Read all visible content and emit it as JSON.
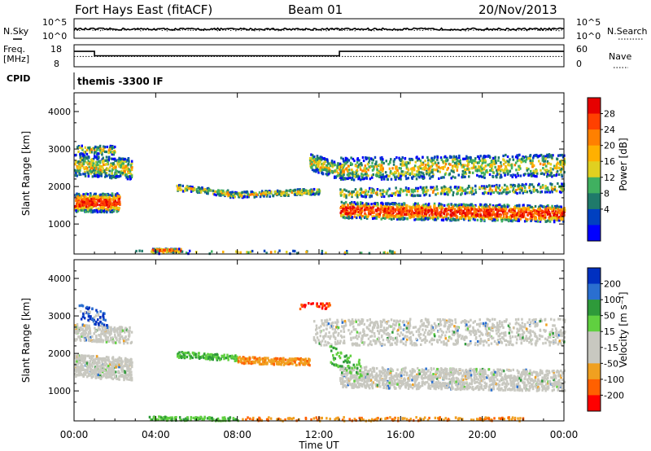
{
  "header": {
    "station": "Fort Hays East (fitACF)",
    "beam": "Beam 01",
    "date": "20/Nov/2013"
  },
  "noise_panel": {
    "left_label": "N.Sky",
    "left_ticks": [
      "10^5",
      "10^0"
    ],
    "right_label": "N.Search",
    "right_ticks": [
      "10^5",
      "10^0"
    ]
  },
  "freq_panel": {
    "left_label_line1": "Freq.",
    "left_label_line2": "[MHz]",
    "left_ticks": [
      18,
      8
    ],
    "right_label": "Nave",
    "right_ticks": [
      60,
      0
    ],
    "freq_steps": [
      {
        "t0": 0.0,
        "t1": 1.0,
        "f": 15.0
      },
      {
        "t0": 1.0,
        "t1": 13.0,
        "f": 13.0
      },
      {
        "t0": 13.0,
        "t1": 24.0,
        "f": 15.0
      }
    ],
    "nave_level": 28
  },
  "cpid": {
    "label": "CPID",
    "program": "themis -3300 IF"
  },
  "chart_data": [
    {
      "type": "heatmap",
      "name": "power",
      "ylabel": "Slant Range [km]",
      "ylim": [
        200,
        4500
      ],
      "yticks": [
        1000,
        2000,
        3000,
        4000
      ],
      "xlim": [
        0,
        24
      ],
      "colorbar_label": "Power [dB]",
      "colorbar_ticks": [
        "28",
        "24",
        "20",
        "16",
        "12",
        "8",
        "4"
      ],
      "colorbar_colors": [
        "#e60000",
        "#ff4000",
        "#ff8000",
        "#ffb000",
        "#e0d020",
        "#40b060",
        "#1f7a6a",
        "#0040c0",
        "#0000ff"
      ]
    },
    {
      "type": "heatmap",
      "name": "velocity",
      "ylabel": "Slant Range [km]",
      "ylim": [
        200,
        4500
      ],
      "yticks": [
        1000,
        2000,
        3000,
        4000
      ],
      "xlim": [
        0,
        24
      ],
      "colorbar_label": "Velocity [m s⁻¹]",
      "colorbar_ticks": [
        "200",
        "100",
        "50",
        "15",
        "-15",
        "-50",
        "-100",
        "-200"
      ],
      "colorbar_colors": [
        "#0030c0",
        "#2a6fd0",
        "#2e9a3a",
        "#60d040",
        "#c8c8c0",
        "#c8c8c0",
        "#f0a020",
        "#ff6000",
        "#ff0000"
      ]
    }
  ],
  "xaxis": {
    "ticks": [
      "00:00",
      "04:00",
      "08:00",
      "12:00",
      "16:00",
      "20:00",
      "00:00"
    ],
    "label": "Time UT"
  }
}
